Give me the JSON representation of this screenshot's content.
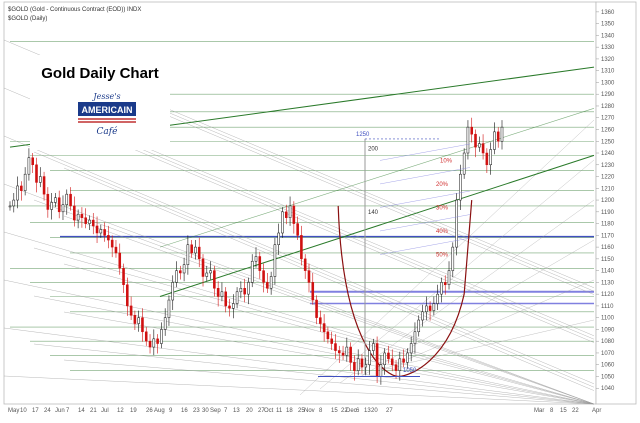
{
  "header": {
    "symbol_line": "$GOLD (Gold - Continuous Contract (EOD)) INDX",
    "sub_line": "$GOLD (Daily)"
  },
  "title": "Gold Daily Chart",
  "logo": {
    "line1": "Jesse's",
    "line2": "AMERICAIN",
    "line3": "Café",
    "color": "#1a3a8a"
  },
  "colors": {
    "up": "#111111",
    "down": "#d01010",
    "channel": "#2a7a2a",
    "fan": "#9a9a9a",
    "hline": "#4a8a4a",
    "cup": "#8a1010",
    "blue": "#4050c0",
    "blue_light": "#8080e0"
  },
  "chart_data": {
    "type": "candlestick",
    "title": "Gold Daily Chart",
    "y_range": [
      1030,
      1365
    ],
    "y_ticks": [
      1040,
      1050,
      1060,
      1070,
      1080,
      1090,
      1100,
      1110,
      1120,
      1130,
      1140,
      1150,
      1160,
      1170,
      1180,
      1190,
      1200,
      1210,
      1220,
      1230,
      1240,
      1250,
      1260,
      1270,
      1280,
      1290,
      1300,
      1310,
      1320,
      1330,
      1340,
      1350,
      1360
    ],
    "x_labels": [
      "May",
      "10",
      "17",
      "24",
      "Jun",
      "7",
      "14",
      "21",
      "Jul",
      "12",
      "19",
      "26",
      "Aug",
      "9",
      "16",
      "23",
      "30",
      "Sep",
      "7",
      "13",
      "20",
      "27",
      "Oct",
      "11",
      "18",
      "25",
      "Nov",
      "8",
      "15",
      "22",
      "Dec",
      "6",
      "13",
      "20",
      "27",
      "Mar",
      "8",
      "15",
      "22",
      "Apr"
    ],
    "closes": [
      1195,
      1200,
      1212,
      1208,
      1222,
      1236,
      1230,
      1215,
      1220,
      1205,
      1192,
      1198,
      1202,
      1190,
      1196,
      1205,
      1195,
      1183,
      1188,
      1185,
      1180,
      1183,
      1178,
      1172,
      1175,
      1170,
      1166,
      1160,
      1155,
      1142,
      1128,
      1110,
      1102,
      1095,
      1100,
      1088,
      1080,
      1075,
      1082,
      1078,
      1090,
      1100,
      1115,
      1130,
      1140,
      1138,
      1145,
      1162,
      1155,
      1160,
      1150,
      1135,
      1138,
      1140,
      1125,
      1118,
      1122,
      1110,
      1108,
      1112,
      1122,
      1125,
      1120,
      1130,
      1148,
      1152,
      1140,
      1130,
      1125,
      1135,
      1162,
      1172,
      1190,
      1185,
      1195,
      1180,
      1170,
      1150,
      1140,
      1130,
      1115,
      1100,
      1095,
      1088,
      1082,
      1078,
      1072,
      1070,
      1068,
      1075,
      1062,
      1055,
      1065,
      1058,
      1060,
      1072,
      1078,
      1050,
      1060,
      1070,
      1065,
      1060,
      1055,
      1065,
      1062,
      1070,
      1078,
      1088,
      1098,
      1105,
      1110,
      1106,
      1112,
      1120,
      1130,
      1128,
      1140,
      1160,
      1200,
      1222,
      1240,
      1262,
      1256,
      1245,
      1248,
      1240,
      1230,
      1243,
      1258,
      1250,
      1262
    ],
    "levels": {
      "gap_arrow_label": "1250",
      "target_200": "200",
      "target_140": "140",
      "base_label": "1050",
      "retracements": [
        "10%",
        "20%",
        "30%",
        "40%",
        "50%"
      ]
    }
  }
}
